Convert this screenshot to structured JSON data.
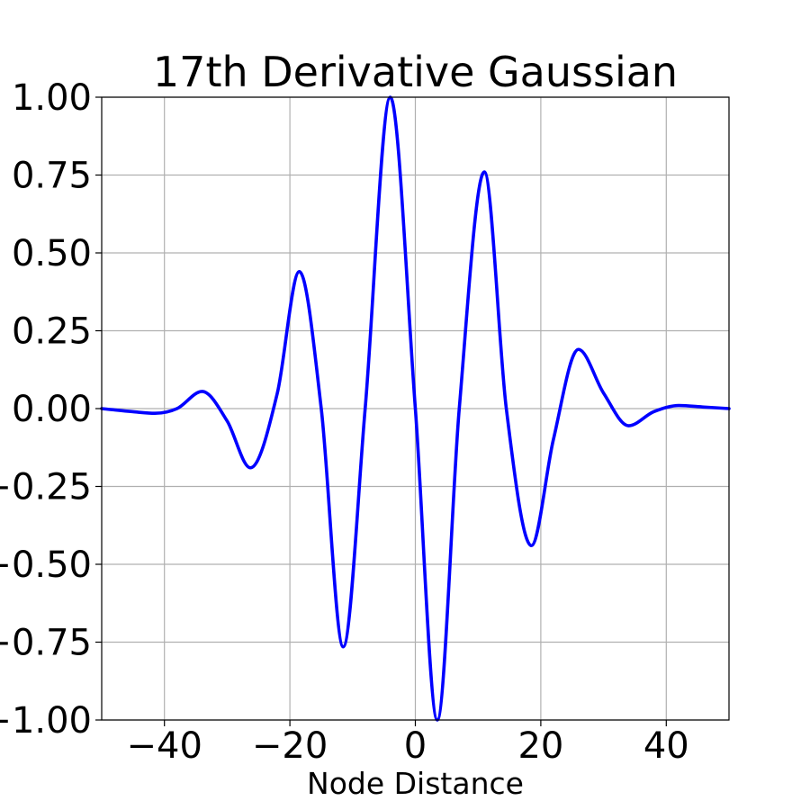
{
  "chart_data": {
    "type": "line",
    "title": "17th Derivative Gaussian",
    "xlabel": "Node Distance",
    "ylabel": "",
    "xlim": [
      -50,
      50
    ],
    "ylim": [
      -1.0,
      1.0
    ],
    "xticks": [
      -40,
      -20,
      0,
      20,
      40
    ],
    "xtick_labels": [
      "−40",
      "−20",
      "0",
      "20",
      "40"
    ],
    "yticks": [
      -1.0,
      -0.75,
      -0.5,
      -0.25,
      0.0,
      0.25,
      0.5,
      0.75,
      1.0
    ],
    "ytick_labels": [
      "−1.00",
      "−0.75",
      "−0.50",
      "−0.25",
      "0.00",
      "0.25",
      "0.50",
      "0.75",
      "1.00"
    ],
    "grid": true,
    "line_color": "#0000ff",
    "series": [
      {
        "x": [
          -50,
          -45,
          -41.5,
          -38,
          -34,
          -30,
          -26.3,
          -22,
          -18.5,
          -15,
          -11.5,
          -8,
          -4,
          0,
          3.5,
          7,
          11,
          14.5,
          18.5,
          22,
          26,
          30,
          34,
          38,
          42,
          46,
          50
        ],
        "y": [
          0.0,
          -0.01,
          -0.015,
          0.0,
          0.055,
          -0.04,
          -0.19,
          0.05,
          0.44,
          0.0,
          -0.765,
          0.0,
          1.0,
          0.0,
          -1.0,
          0.0,
          0.76,
          0.0,
          -0.44,
          -0.1,
          0.19,
          0.05,
          -0.055,
          -0.01,
          0.01,
          0.005,
          0.0
        ]
      }
    ]
  }
}
